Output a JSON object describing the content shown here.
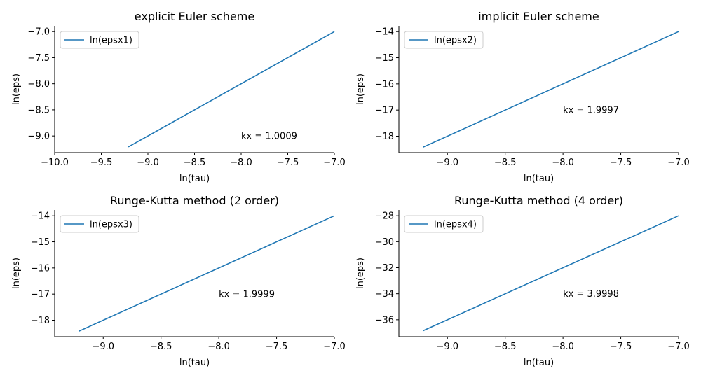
{
  "colors": {
    "series": "#1f77b4",
    "axis": "#000000",
    "legend_border": "#cccccc"
  },
  "chart_data": [
    {
      "type": "line",
      "title": "explicit Euler scheme",
      "xlabel": "ln(tau)",
      "ylabel": "ln(eps)",
      "xlim": [
        -10.0,
        -7.0
      ],
      "ylim": [
        -9.32,
        -6.89
      ],
      "xticks": [
        -10.0,
        -9.5,
        -9.0,
        -8.5,
        -8.0,
        -7.5,
        -7.0
      ],
      "xtick_labels": [
        "−10.0",
        "−9.5",
        "−9.0",
        "−8.5",
        "−8.0",
        "−7.5",
        "−7.0"
      ],
      "yticks": [
        -9.0,
        -8.5,
        -8.0,
        -7.5,
        -7.0
      ],
      "ytick_labels": [
        "−9.0",
        "−8.5",
        "−8.0",
        "−7.5",
        "−7.0"
      ],
      "series": [
        {
          "name": "ln(epsx1)",
          "x": [
            -9.21,
            -7.0
          ],
          "y": [
            -9.21,
            -7.0
          ]
        }
      ],
      "legend": "upper-left",
      "annotation": {
        "text": "kx = 1.0009",
        "x": -8.0,
        "y": -9.0
      }
    },
    {
      "type": "line",
      "title": "implicit Euler scheme",
      "xlabel": "ln(tau)",
      "ylabel": "ln(eps)",
      "xlim": [
        -9.42,
        -7.0
      ],
      "ylim": [
        -18.63,
        -13.78
      ],
      "xticks": [
        -9.0,
        -8.5,
        -8.0,
        -7.5,
        -7.0
      ],
      "xtick_labels": [
        "−9.0",
        "−8.5",
        "−8.0",
        "−7.5",
        "−7.0"
      ],
      "yticks": [
        -18,
        -17,
        -16,
        -15,
        -14
      ],
      "ytick_labels": [
        "−18",
        "−17",
        "−16",
        "−15",
        "−14"
      ],
      "series": [
        {
          "name": "ln(epsx2)",
          "x": [
            -9.21,
            -7.0
          ],
          "y": [
            -18.42,
            -14.0
          ]
        }
      ],
      "legend": "upper-left",
      "annotation": {
        "text": "kx = 1.9997",
        "x": -8.0,
        "y": -17.0
      }
    },
    {
      "type": "line",
      "title": "Runge-Kutta method (2 order)",
      "xlabel": "ln(tau)",
      "ylabel": "ln(eps)",
      "xlim": [
        -9.42,
        -7.0
      ],
      "ylim": [
        -18.63,
        -13.78
      ],
      "xticks": [
        -9.0,
        -8.5,
        -8.0,
        -7.5,
        -7.0
      ],
      "xtick_labels": [
        "−9.0",
        "−8.5",
        "−8.0",
        "−7.5",
        "−7.0"
      ],
      "yticks": [
        -18,
        -17,
        -16,
        -15,
        -14
      ],
      "ytick_labels": [
        "−18",
        "−17",
        "−16",
        "−15",
        "−14"
      ],
      "series": [
        {
          "name": "ln(epsx3)",
          "x": [
            -9.21,
            -7.0
          ],
          "y": [
            -18.42,
            -14.0
          ]
        }
      ],
      "legend": "upper-left",
      "annotation": {
        "text": "kx = 1.9999",
        "x": -8.0,
        "y": -17.0
      }
    },
    {
      "type": "line",
      "title": "Runge-Kutta method (4 order)",
      "xlabel": "ln(tau)",
      "ylabel": "ln(eps)",
      "xlim": [
        -9.42,
        -7.0
      ],
      "ylim": [
        -37.3,
        -27.56
      ],
      "xticks": [
        -9.0,
        -8.5,
        -8.0,
        -7.5,
        -7.0
      ],
      "xtick_labels": [
        "−9.0",
        "−8.5",
        "−8.0",
        "−7.5",
        "−7.0"
      ],
      "yticks": [
        -36,
        -34,
        -32,
        -30,
        -28
      ],
      "ytick_labels": [
        "−36",
        "−34",
        "−32",
        "−30",
        "−28"
      ],
      "series": [
        {
          "name": "ln(epsx4)",
          "x": [
            -9.21,
            -7.0
          ],
          "y": [
            -36.84,
            -28.0
          ]
        }
      ],
      "legend": "upper-left",
      "annotation": {
        "text": "kx = 3.9998",
        "x": -8.0,
        "y": -34.0
      }
    }
  ]
}
